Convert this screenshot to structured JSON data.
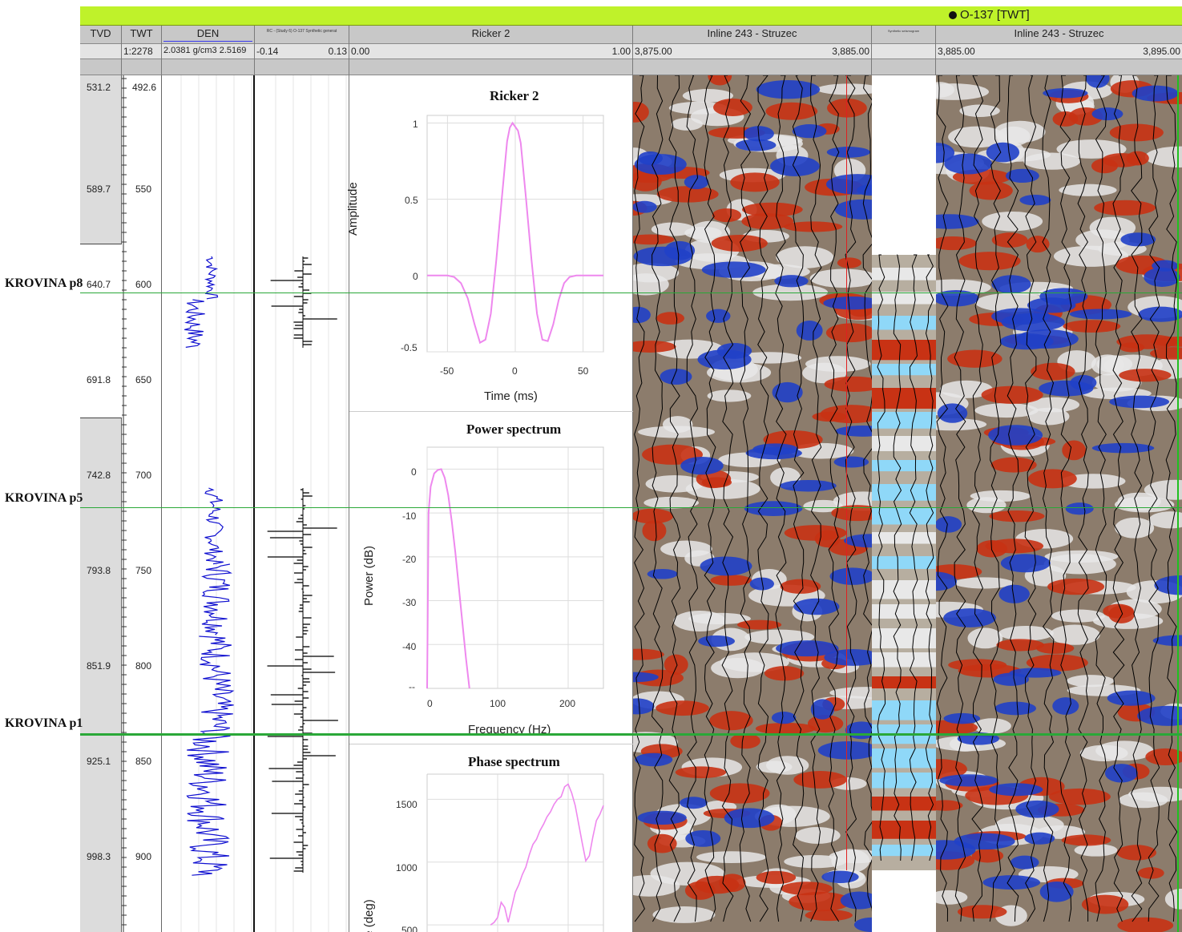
{
  "well_title": "O-137 [TWT]",
  "columns": {
    "tvd": {
      "name": "TVD"
    },
    "twt": {
      "name": "TWT",
      "scale": "1:2278"
    },
    "den": {
      "name": "DEN",
      "range": "2.0381 g/cm3 2.5169"
    },
    "rc": {
      "name": "RC - (Study 6) O-137 Synthetic generat",
      "min": "-0.14",
      "max": "0.13"
    },
    "ricker": {
      "name": "Ricker 2",
      "min": "0.00",
      "max": "1.00"
    },
    "inline1": {
      "name": "Inline 243 - Struzec",
      "min": "3,875.00",
      "max": "3,885.00"
    },
    "synthetic": {
      "name": "Synthetic seismogram"
    },
    "inline2": {
      "name": "Inline 243 - Struzec",
      "min": "3,885.00",
      "max": "3,895.00"
    }
  },
  "depth_ticks": {
    "tvd": [
      "531.2",
      "589.7",
      "640.7",
      "691.8",
      "742.8",
      "793.8",
      "851.9",
      "925.1",
      "998.3"
    ],
    "twt": [
      "492.6",
      "550",
      "600",
      "650",
      "700",
      "750",
      "800",
      "850",
      "900"
    ]
  },
  "horizons": [
    {
      "name": "KROVINA p8"
    },
    {
      "name": "KROVINA p5"
    },
    {
      "name": "KROVINA p1"
    }
  ],
  "plots": {
    "ricker": {
      "title": "Ricker 2",
      "xlabel": "Time (ms)",
      "ylabel": "Amplitude",
      "xticks": [
        "-50",
        "0",
        "50"
      ],
      "yticks": [
        "1",
        "0.5",
        "0",
        "-0.5"
      ]
    },
    "power": {
      "title": "Power spectrum",
      "xlabel": "Frequency (Hz)",
      "ylabel": "Power (dB)",
      "xticks": [
        "0",
        "100",
        "200"
      ],
      "yticks": [
        "0",
        "-10",
        "-20",
        "-30",
        "-40",
        "--"
      ]
    },
    "phase": {
      "title": "Phase spectrum",
      "ylabel": "Phase (deg)",
      "yticks": [
        "1500",
        "1000",
        "500"
      ]
    }
  },
  "chart_data": [
    {
      "type": "line",
      "title": "Ricker 2",
      "xlabel": "Time (ms)",
      "ylabel": "Amplitude",
      "xlim": [
        -65,
        65
      ],
      "ylim": [
        -0.5,
        1.05
      ],
      "x": [
        -65,
        -60,
        -55,
        -50,
        -45,
        -40,
        -35,
        -30,
        -26,
        -22,
        -18,
        -14,
        -10,
        -6,
        -4,
        -2,
        2,
        4,
        8,
        12,
        16,
        20,
        24,
        28,
        32,
        36,
        40,
        45,
        50,
        55,
        60,
        65
      ],
      "y": [
        0,
        0,
        0,
        0,
        -0.01,
        -0.05,
        -0.15,
        -0.32,
        -0.44,
        -0.42,
        -0.25,
        0.1,
        0.5,
        0.88,
        0.97,
        1.0,
        0.95,
        0.87,
        0.5,
        0.1,
        -0.25,
        -0.42,
        -0.43,
        -0.32,
        -0.16,
        -0.05,
        -0.01,
        0,
        0,
        0,
        0,
        0
      ]
    },
    {
      "type": "line",
      "title": "Power spectrum",
      "xlabel": "Frequency (Hz)",
      "ylabel": "Power (dB)",
      "xlim": [
        0,
        250
      ],
      "ylim": [
        -50,
        5
      ],
      "x": [
        0,
        2,
        5,
        10,
        15,
        20,
        25,
        30,
        35,
        40,
        45,
        50,
        55,
        60
      ],
      "y": [
        -50,
        -10,
        -4,
        -1,
        -0.2,
        0,
        -2,
        -6,
        -12,
        -19,
        -27,
        -35,
        -43,
        -50
      ]
    },
    {
      "type": "line",
      "title": "Phase spectrum",
      "ylabel": "Phase (deg)",
      "xlim": [
        0,
        250
      ],
      "ylim": [
        450,
        1700
      ],
      "x": [
        90,
        95,
        100,
        105,
        110,
        115,
        120,
        125,
        130,
        135,
        140,
        145,
        150,
        155,
        160,
        165,
        170,
        175,
        180,
        185,
        190,
        195,
        200,
        205,
        210,
        215,
        220,
        225,
        230,
        235,
        240,
        245,
        250
      ],
      "y": [
        500,
        520,
        560,
        680,
        640,
        520,
        640,
        760,
        820,
        900,
        960,
        1060,
        1140,
        1180,
        1250,
        1300,
        1360,
        1400,
        1460,
        1500,
        1520,
        1600,
        1620,
        1550,
        1450,
        1300,
        1150,
        1010,
        1050,
        1200,
        1330,
        1380,
        1450
      ]
    }
  ],
  "colors": {
    "title_bar": "#bff22a",
    "horizon": "#2aa838",
    "den_curve": "#1010d0",
    "wavelet": "#ee88ee",
    "red_cursor": "#e02020"
  }
}
